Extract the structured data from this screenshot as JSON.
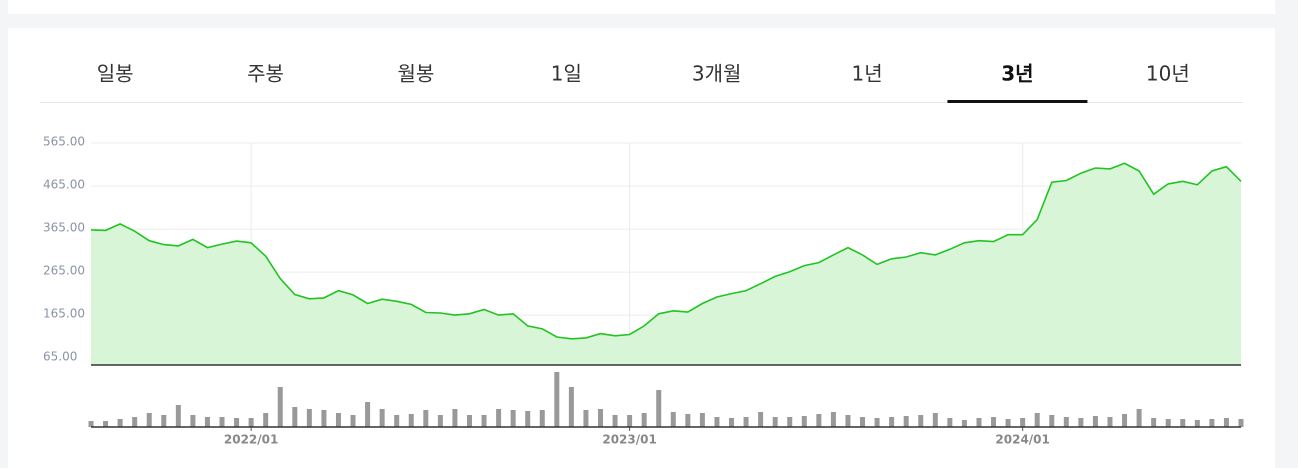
{
  "tabs": [
    "일봉",
    "주봉",
    "월봉",
    "1일",
    "3개월",
    "1년",
    "3년",
    "10년"
  ],
  "selected_tab": 6,
  "chart_data": {
    "type": "area",
    "categories": [
      null,
      null,
      null,
      null,
      null,
      null,
      null,
      null,
      null,
      null,
      null,
      "2022/01",
      null,
      null,
      null,
      null,
      null,
      null,
      null,
      null,
      null,
      null,
      null,
      null,
      null,
      null,
      null,
      null,
      null,
      null,
      null,
      null,
      null,
      null,
      null,
      null,
      null,
      "2023/01",
      null,
      null,
      null,
      null,
      null,
      null,
      null,
      null,
      null,
      null,
      null,
      null,
      null,
      null,
      null,
      null,
      null,
      null,
      null,
      null,
      null,
      null,
      null,
      null,
      null,
      null,
      "2024/01",
      null,
      null,
      null,
      null,
      null,
      null,
      null,
      null,
      null,
      null,
      null,
      null,
      null,
      null,
      null
    ],
    "values": [
      363,
      362,
      377,
      360,
      338,
      329,
      326,
      341,
      322,
      330,
      337,
      333,
      302,
      250,
      213,
      203,
      205,
      222,
      212,
      192,
      202,
      197,
      190,
      171,
      170,
      165,
      168,
      178,
      165,
      168,
      140,
      133,
      114,
      110,
      112,
      122,
      117,
      120,
      140,
      168,
      175,
      172,
      192,
      207,
      215,
      222,
      238,
      255,
      266,
      280,
      287,
      305,
      322,
      305,
      283,
      296,
      300,
      310,
      305,
      318,
      333,
      338,
      336,
      352,
      352,
      387,
      474,
      478,
      495,
      507,
      505,
      518,
      500,
      446,
      470,
      476,
      468,
      500,
      510,
      476
    ],
    "volume": [
      6,
      6,
      8,
      10,
      14,
      12,
      22,
      12,
      10,
      10,
      9,
      9,
      14,
      40,
      20,
      18,
      17,
      14,
      12,
      25,
      18,
      12,
      13,
      17,
      12,
      18,
      12,
      12,
      18,
      17,
      16,
      17,
      55,
      40,
      17,
      18,
      12,
      12,
      14,
      37,
      15,
      13,
      14,
      10,
      9,
      10,
      15,
      10,
      10,
      11,
      13,
      15,
      12,
      10,
      9,
      10,
      11,
      12,
      14,
      9,
      7,
      9,
      10,
      8,
      9,
      14,
      12,
      10,
      9,
      11,
      10,
      13,
      18,
      9,
      8,
      8,
      7,
      8,
      9,
      8
    ],
    "color": "#22c322",
    "fill_color": "#d8f5d8",
    "volume_color": "#999999",
    "ylim": [
      49,
      600
    ],
    "yticks": [
      {
        "value": 565,
        "label": "565.00"
      },
      {
        "value": 465,
        "label": "465.00"
      },
      {
        "value": 365,
        "label": "365.00"
      },
      {
        "value": 265,
        "label": "265.00"
      },
      {
        "value": 165,
        "label": "165.00"
      },
      {
        "value": 65,
        "label": "65.00"
      }
    ],
    "volume_ylim": [
      0,
      62
    ],
    "grid": true
  }
}
